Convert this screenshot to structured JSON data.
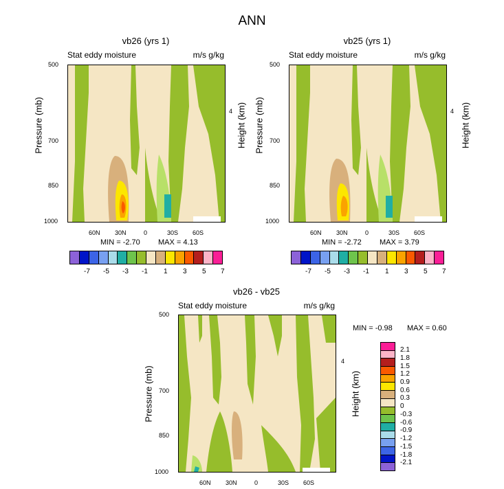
{
  "title": "ANN",
  "palette": [
    "#8c62d8",
    "#0014c8",
    "#3c64e6",
    "#78a0f0",
    "#aadcea",
    "#20aea4",
    "#6ec44c",
    "#96bd2c",
    "#f5e6c4",
    "#d8b07c",
    "#fce600",
    "#faa300",
    "#fa5a00",
    "#b41e1e",
    "#fcb4c8",
    "#fa1e96"
  ],
  "horiz_labels": [
    "-7",
    "-5",
    "-3",
    "-1",
    "1",
    "3",
    "5",
    "7"
  ],
  "vert_labels": [
    "2.1",
    "1.8",
    "1.5",
    "1.2",
    "0.9",
    "0.6",
    "0.3",
    "0",
    "-0.3",
    "-0.6",
    "-0.9",
    "-1.2",
    "-1.5",
    "-1.8",
    "-2.1"
  ],
  "chart_data": [
    {
      "type": "contour",
      "title": "vb26 (yrs 1)",
      "subtitle_left": "Stat eddy moisture",
      "subtitle_right": "m/s g/kg",
      "ylabel": "Pressure (mb)",
      "ylabel_right": "Height (km)",
      "x_ticks": [
        "60N",
        "30N",
        "0",
        "30S",
        "60S"
      ],
      "x_tick_values": [
        60,
        30,
        0,
        -30,
        -60
      ],
      "xlim": [
        90,
        -90
      ],
      "y_ticks": [
        "500",
        "700",
        "850",
        "1000"
      ],
      "y_tick_values": [
        500,
        700,
        850,
        1000
      ],
      "ylim": [
        500,
        1000
      ],
      "right_ticks": [
        "4"
      ],
      "min_label": "MIN =  -2.70",
      "max_label": "MAX =   4.13",
      "min": -2.7,
      "max": 4.13,
      "colorbar": "horizontal"
    },
    {
      "type": "contour",
      "title": "vb25 (yrs 1)",
      "subtitle_left": "Stat eddy moisture",
      "subtitle_right": "m/s g/kg",
      "ylabel": "Pressure (mb)",
      "ylabel_right": "Height (km)",
      "x_ticks": [
        "60N",
        "30N",
        "0",
        "30S",
        "60S"
      ],
      "x_tick_values": [
        60,
        30,
        0,
        -30,
        -60
      ],
      "xlim": [
        90,
        -90
      ],
      "y_ticks": [
        "500",
        "700",
        "850",
        "1000"
      ],
      "y_tick_values": [
        500,
        700,
        850,
        1000
      ],
      "ylim": [
        500,
        1000
      ],
      "right_ticks": [
        "4"
      ],
      "min_label": "MIN =  -2.72",
      "max_label": "MAX =   3.79",
      "min": -2.72,
      "max": 3.79,
      "colorbar": "horizontal"
    },
    {
      "type": "contour",
      "title": "vb26 - vb25",
      "subtitle_left": "Stat eddy moisture",
      "subtitle_right": "m/s g/kg",
      "ylabel": "Pressure (mb)",
      "ylabel_right": "Height (km)",
      "x_ticks": [
        "60N",
        "30N",
        "0",
        "30S",
        "60S"
      ],
      "x_tick_values": [
        60,
        30,
        0,
        -30,
        -60
      ],
      "xlim": [
        90,
        -90
      ],
      "y_ticks": [
        "500",
        "700",
        "850",
        "1000"
      ],
      "y_tick_values": [
        500,
        700,
        850,
        1000
      ],
      "ylim": [
        500,
        1000
      ],
      "right_ticks": [
        "4"
      ],
      "min_label": "MIN =  -0.98",
      "max_label": "MAX =   0.60",
      "min": -0.98,
      "max": 0.6,
      "colorbar": "vertical"
    }
  ]
}
